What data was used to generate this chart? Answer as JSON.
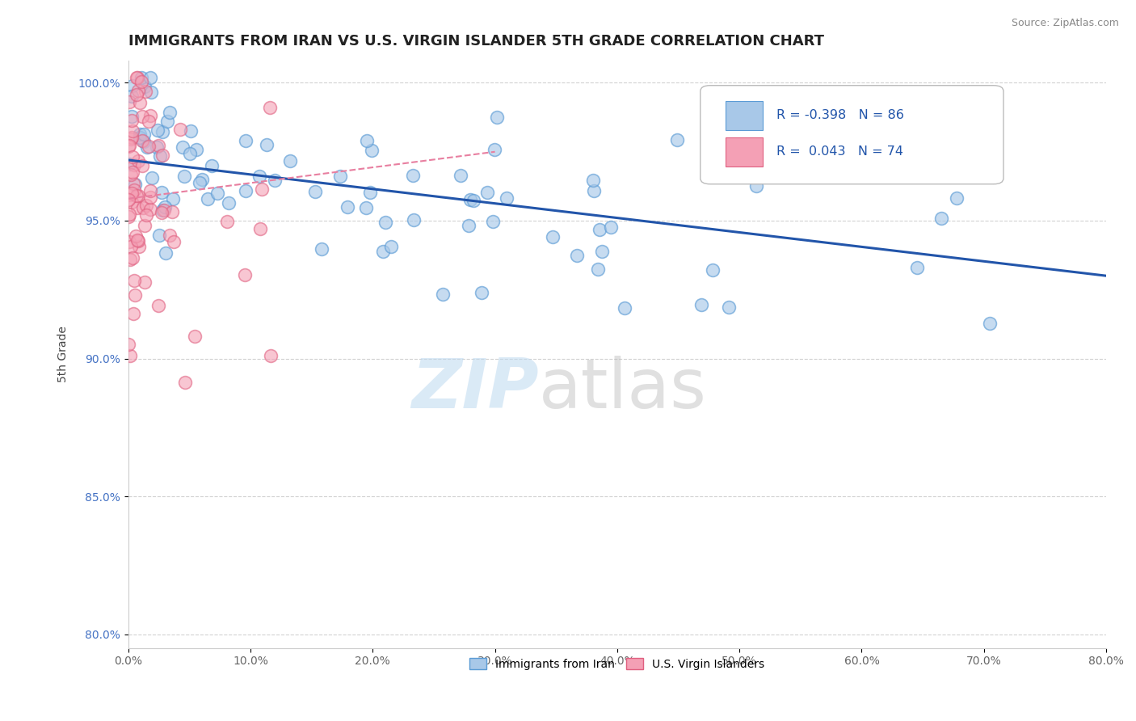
{
  "title": "IMMIGRANTS FROM IRAN VS U.S. VIRGIN ISLANDER 5TH GRADE CORRELATION CHART",
  "source": "Source: ZipAtlas.com",
  "ylabel": "5th Grade",
  "legend_label1": "Immigrants from Iran",
  "legend_label2": "U.S. Virgin Islanders",
  "r1": -0.398,
  "n1": 86,
  "r2": 0.043,
  "n2": 74,
  "color1": "#a8c8e8",
  "color2": "#f4a0b5",
  "edge1": "#5b9bd5",
  "edge2": "#e06080",
  "trendline1_color": "#2255aa",
  "trendline2_color": "#e87fa0",
  "xlim": [
    0.0,
    0.8
  ],
  "ylim": [
    0.795,
    1.008
  ],
  "xticks": [
    0.0,
    0.1,
    0.2,
    0.3,
    0.4,
    0.5,
    0.6,
    0.7,
    0.8
  ],
  "yticks": [
    0.8,
    0.85,
    0.9,
    0.95,
    1.0
  ],
  "blue_trend_x0": 0.0,
  "blue_trend_y0": 0.972,
  "blue_trend_x1": 0.8,
  "blue_trend_y1": 0.93,
  "pink_trend_x0": 0.0,
  "pink_trend_y0": 0.958,
  "pink_trend_x1": 0.3,
  "pink_trend_y1": 0.975
}
